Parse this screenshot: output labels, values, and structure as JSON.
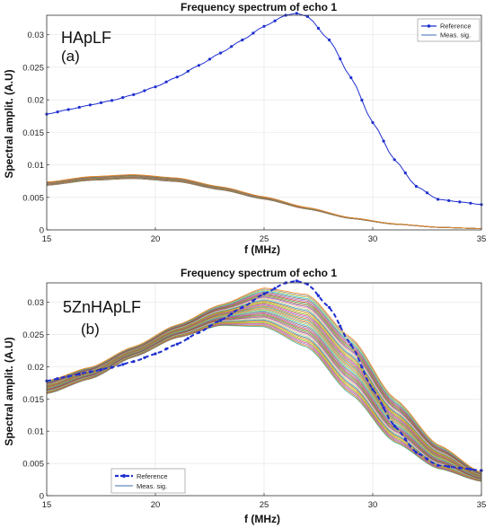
{
  "chart_data": [
    {
      "type": "line",
      "title": "Frequency spectrum of echo 1",
      "xlabel": "f (MHz)",
      "ylabel": "Spectral amplit. (A.U)",
      "xlim": [
        15,
        35
      ],
      "ylim": [
        0,
        0.033
      ],
      "xticks": [
        15,
        20,
        25,
        30,
        35
      ],
      "xtick_labels": [
        "15",
        "20",
        "25",
        "30",
        "35"
      ],
      "yticks": [
        0,
        0.005,
        0.01,
        0.015,
        0.02,
        0.025,
        0.03
      ],
      "ytick_labels": [
        "0",
        "0.005",
        "0.01",
        "0.015",
        "0.02",
        "0.025",
        "0.03"
      ],
      "grid": true,
      "legend": {
        "placement": "top-right",
        "entries": [
          "Reference",
          "Meas. sig."
        ]
      },
      "annotations": [
        "HApLF",
        "(a)"
      ],
      "series": [
        {
          "name": "Reference",
          "color": "#1f2fd0",
          "marker": "dot",
          "x": [
            15,
            16,
            17,
            18,
            19,
            20,
            21,
            22,
            23,
            24,
            25,
            26,
            26.5,
            27,
            28,
            29,
            30,
            31,
            32,
            33,
            34,
            35
          ],
          "y": [
            0.0178,
            0.0185,
            0.0192,
            0.0199,
            0.0208,
            0.022,
            0.0235,
            0.0253,
            0.0272,
            0.0292,
            0.0313,
            0.033,
            0.0333,
            0.0328,
            0.0292,
            0.0234,
            0.0165,
            0.0108,
            0.0067,
            0.0047,
            0.0043,
            0.0039
          ]
        },
        {
          "name": "Meas. sig.",
          "color": "#2e8b57",
          "bundle": true,
          "x": [
            15,
            17,
            19,
            21,
            23,
            25,
            27,
            29,
            31,
            33,
            35
          ],
          "y": [
            0.0071,
            0.0079,
            0.0082,
            0.0077,
            0.0064,
            0.0049,
            0.0033,
            0.0018,
            0.0009,
            0.0004,
            0.0002
          ],
          "spread": 0.0006
        }
      ]
    },
    {
      "type": "line",
      "title": "Frequency spectrum of echo 1",
      "xlabel": "f (MHz)",
      "ylabel": "Spectral amplit. (A.U)",
      "xlim": [
        15,
        35
      ],
      "ylim": [
        0,
        0.033
      ],
      "xticks": [
        15,
        20,
        25,
        30,
        35
      ],
      "xtick_labels": [
        "15",
        "20",
        "25",
        "30",
        "35"
      ],
      "yticks": [
        0,
        0.005,
        0.01,
        0.015,
        0.02,
        0.025,
        0.03
      ],
      "ytick_labels": [
        "0",
        "0.005",
        "0.01",
        "0.015",
        "0.02",
        "0.025",
        "0.03"
      ],
      "grid": true,
      "legend": {
        "placement": "bottom-left",
        "entries": [
          "Reference",
          "Meas. sig."
        ]
      },
      "annotations": [
        "5ZnHApLF",
        "(b)"
      ],
      "series": [
        {
          "name": "Reference",
          "color": "#1f2fd0",
          "marker": "dot",
          "x": [
            15,
            16,
            17,
            18,
            19,
            20,
            21,
            22,
            23,
            24,
            25,
            26,
            26.5,
            27,
            28,
            29,
            30,
            31,
            32,
            33,
            34,
            35
          ],
          "y": [
            0.0178,
            0.0185,
            0.0192,
            0.0199,
            0.0208,
            0.022,
            0.0235,
            0.0253,
            0.0272,
            0.0292,
            0.0313,
            0.033,
            0.0333,
            0.0328,
            0.0292,
            0.0234,
            0.0165,
            0.0108,
            0.0067,
            0.0047,
            0.0043,
            0.0039
          ]
        },
        {
          "name": "Meas. sig.",
          "color": "#2e8b57",
          "bundle": true,
          "x": [
            15,
            17,
            19,
            21,
            23,
            25,
            27,
            29,
            31,
            33,
            35
          ],
          "y_upper": [
            0.0178,
            0.0199,
            0.0231,
            0.0265,
            0.0296,
            0.0322,
            0.0312,
            0.0245,
            0.0151,
            0.0079,
            0.0036
          ],
          "y_lower": [
            0.0158,
            0.0181,
            0.0215,
            0.0245,
            0.0264,
            0.0262,
            0.023,
            0.0157,
            0.0083,
            0.0042,
            0.0022
          ]
        }
      ]
    }
  ]
}
